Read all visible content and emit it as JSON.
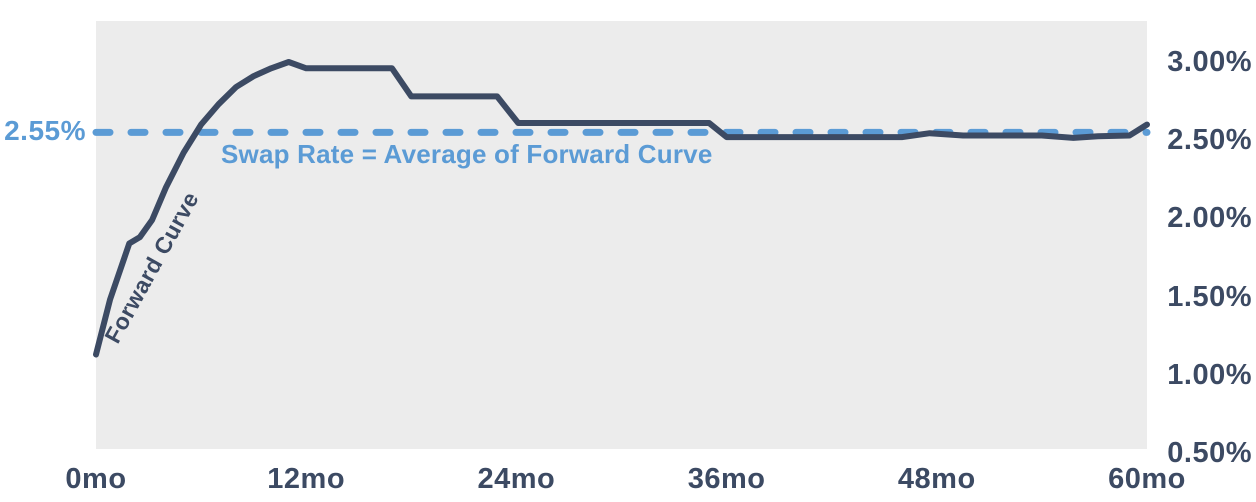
{
  "colors": {
    "curve_navy": "#3c4a63",
    "swap_blue": "#5b9bd5",
    "plot_background": "#ececec",
    "page_background": "#ffffff"
  },
  "labels": {
    "swap_rate_left_value": "2.55%",
    "swap_rate_annotation": "Swap Rate = Average of Forward Curve",
    "forward_curve_series": "Forward Curve"
  },
  "chart_data": {
    "type": "line",
    "title": "",
    "xlabel": "",
    "ylabel": "",
    "xlim_months": [
      0,
      60
    ],
    "ylim_percent": [
      0.5,
      3.0
    ],
    "grid": false,
    "legend_position": "none",
    "x_ticks": [
      {
        "month": 0,
        "label": "0mo"
      },
      {
        "month": 12,
        "label": "12mo"
      },
      {
        "month": 24,
        "label": "24mo"
      },
      {
        "month": 36,
        "label": "36mo"
      },
      {
        "month": 48,
        "label": "48mo"
      },
      {
        "month": 60,
        "label": "60mo"
      }
    ],
    "y_ticks": [
      {
        "value": 3.0,
        "label": "3.00%"
      },
      {
        "value": 2.5,
        "label": "2.50%"
      },
      {
        "value": 2.0,
        "label": "2.00%"
      },
      {
        "value": 1.5,
        "label": "1.50%"
      },
      {
        "value": 1.0,
        "label": "1.00%"
      },
      {
        "value": 0.5,
        "label": "0.50%"
      }
    ],
    "series": [
      {
        "name": "Forward Curve",
        "style": "solid",
        "color": "#3c4a63",
        "points_month_percent": [
          [
            0,
            1.13
          ],
          [
            0.8,
            1.48
          ],
          [
            1.9,
            1.84
          ],
          [
            2.5,
            1.88
          ],
          [
            3.2,
            1.99
          ],
          [
            4,
            2.2
          ],
          [
            5,
            2.42
          ],
          [
            6,
            2.6
          ],
          [
            7,
            2.73
          ],
          [
            8,
            2.84
          ],
          [
            9,
            2.91
          ],
          [
            10,
            2.96
          ],
          [
            11,
            3.0
          ],
          [
            12,
            2.96
          ],
          [
            16.9,
            2.96
          ],
          [
            18,
            2.78
          ],
          [
            22.9,
            2.78
          ],
          [
            24.1,
            2.61
          ],
          [
            35,
            2.61
          ],
          [
            36,
            2.52
          ],
          [
            46,
            2.52
          ],
          [
            47.6,
            2.545
          ],
          [
            49.5,
            2.53
          ],
          [
            54,
            2.53
          ],
          [
            55.8,
            2.515
          ],
          [
            57.2,
            2.525
          ],
          [
            59,
            2.53
          ],
          [
            60,
            2.6
          ]
        ]
      },
      {
        "name": "Swap Rate",
        "style": "dashed",
        "color": "#5b9bd5",
        "value_percent": 2.55,
        "annotation": "Swap Rate = Average of Forward Curve",
        "left_label": "2.55%"
      }
    ]
  }
}
